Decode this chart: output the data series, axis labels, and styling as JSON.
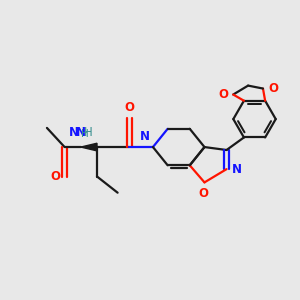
{
  "background_color": "#e8e8e8",
  "bond_color": "#1a1a1a",
  "nitrogen_color": "#1414ff",
  "oxygen_color": "#ff1400",
  "oxygen_color2": "#ff1400",
  "teal_color": "#3a9090",
  "line_width": 1.6,
  "figsize": [
    3.0,
    3.0
  ],
  "dpi": 100,
  "xlim": [
    0,
    10
  ],
  "ylim": [
    0,
    10
  ]
}
